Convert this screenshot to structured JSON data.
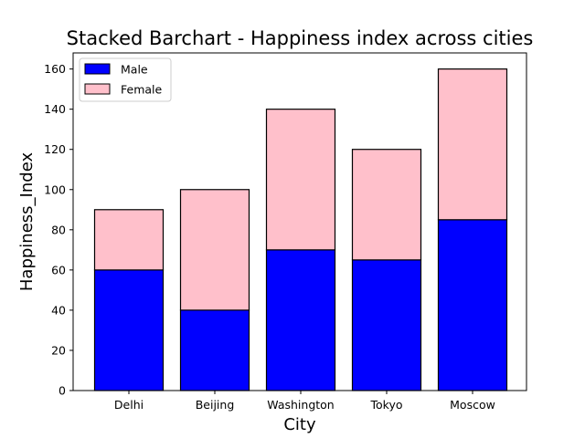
{
  "chart_data": {
    "type": "bar",
    "stacked": true,
    "title": "Stacked Barchart - Happiness index across cities",
    "xlabel": "City",
    "ylabel": "Happiness_Index",
    "categories": [
      "Delhi",
      "Beijing",
      "Washington",
      "Tokyo",
      "Moscow"
    ],
    "series": [
      {
        "name": "Male",
        "values": [
          60,
          40,
          70,
          65,
          85
        ],
        "color": "#0000ff"
      },
      {
        "name": "Female",
        "values": [
          30,
          60,
          70,
          55,
          75
        ],
        "color": "#ffc0cb"
      }
    ],
    "ylim": [
      0,
      168
    ],
    "yticks": [
      0,
      20,
      40,
      60,
      80,
      100,
      120,
      140,
      160
    ],
    "grid": false,
    "legend_position": "top-left",
    "bar_edge_color": "#000000"
  }
}
